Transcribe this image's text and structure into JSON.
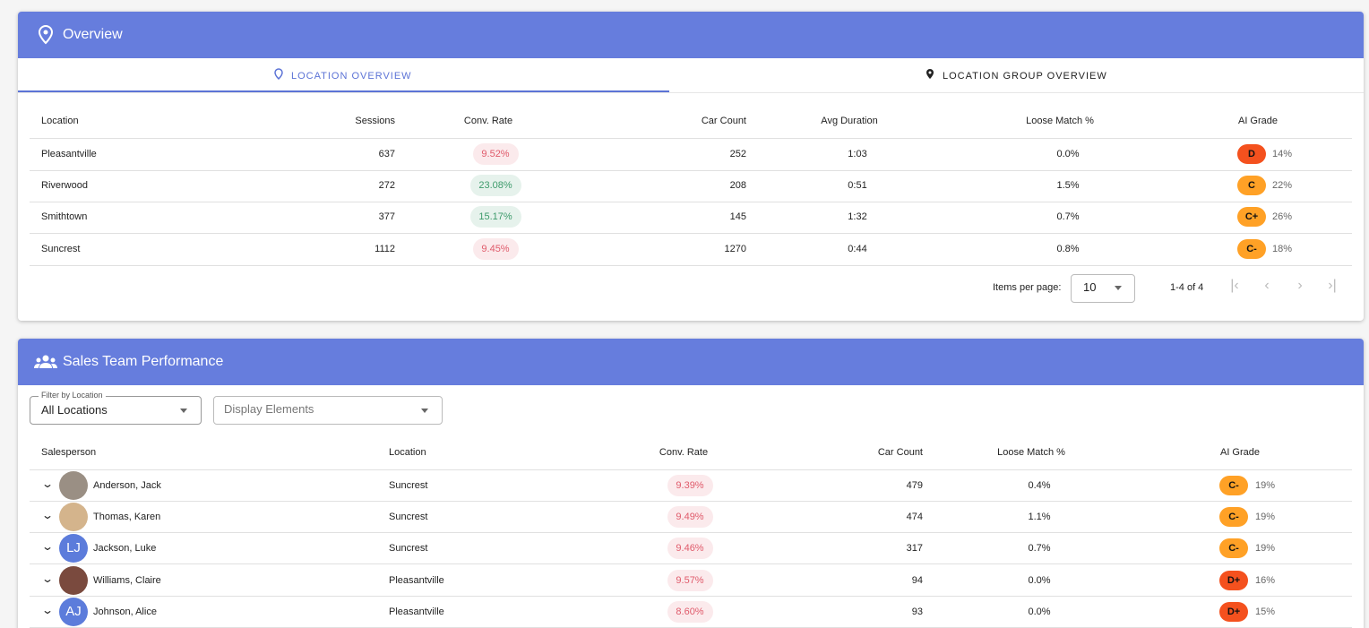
{
  "overview": {
    "title": "Overview",
    "tabs": [
      "LOCATION OVERVIEW",
      "LOCATION GROUP OVERVIEW"
    ],
    "table": {
      "columns": [
        "Location",
        "Sessions",
        "Conv. Rate",
        "Car Count",
        "Avg Duration",
        "Loose Match %",
        "AI Grade"
      ],
      "rows": [
        {
          "location": "Pleasantville",
          "sessions": "637",
          "conv_rate": "9.52%",
          "conv_color": "#e05b6b",
          "car_count": "252",
          "avg_duration": "1:03",
          "loose_match": "0.0%",
          "grade": "D",
          "grade_color": "#f4511e",
          "grade_pct": "14%"
        },
        {
          "location": "Riverwood",
          "sessions": "272",
          "conv_rate": "23.08%",
          "conv_color": "#3d9b6b",
          "car_count": "208",
          "avg_duration": "0:51",
          "loose_match": "1.5%",
          "grade": "C",
          "grade_color": "#ffa126",
          "grade_pct": "22%"
        },
        {
          "location": "Smithtown",
          "sessions": "377",
          "conv_rate": "15.17%",
          "conv_color": "#3d9b6b",
          "car_count": "145",
          "avg_duration": "1:32",
          "loose_match": "0.7%",
          "grade": "C+",
          "grade_color": "#ffa126",
          "grade_pct": "26%"
        },
        {
          "location": "Suncrest",
          "sessions": "1112",
          "conv_rate": "9.45%",
          "conv_color": "#e05b6b",
          "car_count": "1270",
          "avg_duration": "0:44",
          "loose_match": "0.8%",
          "grade": "C-",
          "grade_color": "#ffa126",
          "grade_pct": "18%"
        }
      ]
    },
    "pagination": {
      "items_per_page_label": "Items per page:",
      "items_per_page": "10",
      "range": "1-4 of 4"
    }
  },
  "sales": {
    "title": "Sales Team Performance",
    "filter_label": "Filter by Location",
    "filter_value": "All Locations",
    "display_placeholder": "Display Elements",
    "table": {
      "columns": [
        "Salesperson",
        "Location",
        "Conv. Rate",
        "Car Count",
        "Loose Match %",
        "AI Grade"
      ],
      "rows": [
        {
          "name": "Anderson, Jack",
          "location": "Suncrest",
          "conv_rate": "9.39%",
          "conv_color": "#e05b6b",
          "car_count": "479",
          "loose_match": "0.4%",
          "grade": "C-",
          "grade_color": "#ffa126",
          "grade_pct": "19%"
        },
        {
          "name": "Thomas, Karen",
          "location": "Suncrest",
          "conv_rate": "9.49%",
          "conv_color": "#e05b6b",
          "car_count": "474",
          "loose_match": "1.1%",
          "grade": "C-",
          "grade_color": "#ffa126",
          "grade_pct": "19%"
        },
        {
          "name": "Jackson, Luke",
          "initials": "LJ",
          "location": "Suncrest",
          "conv_rate": "9.46%",
          "conv_color": "#e05b6b",
          "car_count": "317",
          "loose_match": "0.7%",
          "grade": "C-",
          "grade_color": "#ffa126",
          "grade_pct": "19%"
        },
        {
          "name": "Williams, Claire",
          "location": "Pleasantville",
          "conv_rate": "9.57%",
          "conv_color": "#e05b6b",
          "car_count": "94",
          "loose_match": "0.0%",
          "grade": "D+",
          "grade_color": "#f4511e",
          "grade_pct": "16%"
        },
        {
          "name": "Johnson, Alice",
          "initials": "AJ",
          "location": "Pleasantville",
          "conv_rate": "8.60%",
          "conv_color": "#e05b6b",
          "car_count": "93",
          "loose_match": "0.0%",
          "grade": "D+",
          "grade_color": "#f4511e",
          "grade_pct": "15%"
        }
      ]
    }
  }
}
